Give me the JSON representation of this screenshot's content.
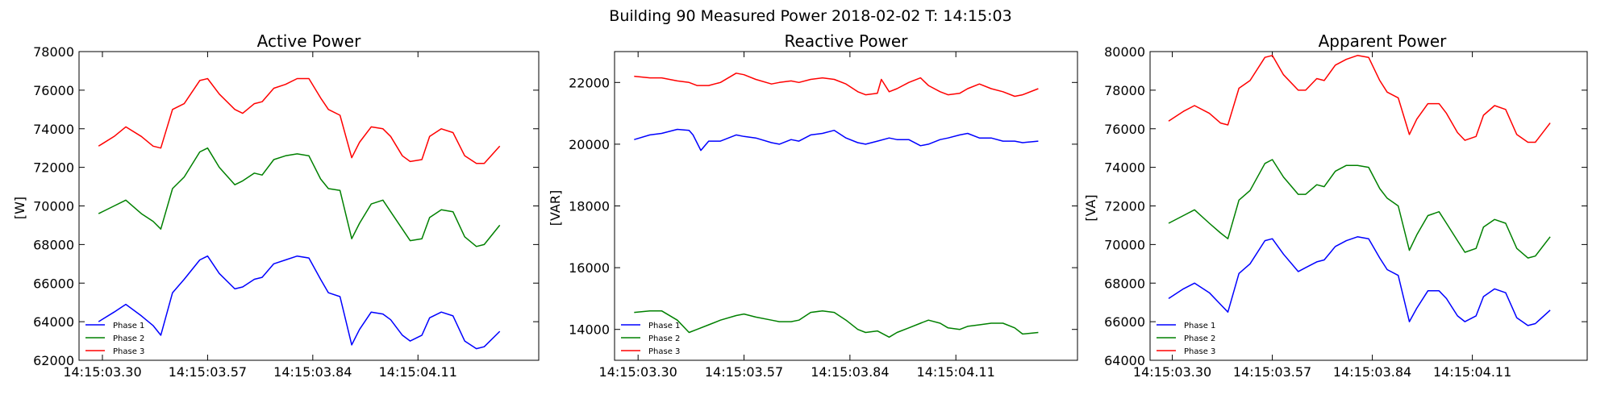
{
  "figure": {
    "suptitle": "Building 90 Measured Power 2018-02-02 T: 14:15:03"
  },
  "legend": [
    "Phase 1",
    "Phase 2",
    "Phase 3"
  ],
  "colors": {
    "phase1": "#0000ff",
    "phase2": "#008000",
    "phase3": "#ff0000",
    "axes": "#000000"
  },
  "chart_data": [
    {
      "type": "line",
      "title": "Active Power",
      "ylabel": "[W]",
      "xlabel": "",
      "x_ticks": [
        "14:15:03.30",
        "14:15:03.57",
        "14:15:03.84",
        "14:15:04.11"
      ],
      "x_range": [
        "14:15:03.24",
        "14:15:04.42"
      ],
      "x_tick_positions": [
        3.3,
        3.57,
        3.84,
        4.11
      ],
      "x_range_seconds": [
        3.24,
        4.42
      ],
      "ylim": [
        62000,
        78000
      ],
      "y_ticks": [
        62000,
        64000,
        66000,
        68000,
        70000,
        72000,
        74000,
        76000,
        78000
      ],
      "legend_position": "lower-left",
      "grid": false,
      "series": [
        {
          "name": "Phase 1",
          "color": "#0000ff",
          "x": [
            3.29,
            3.33,
            3.36,
            3.4,
            3.43,
            3.45,
            3.48,
            3.51,
            3.55,
            3.57,
            3.6,
            3.64,
            3.66,
            3.69,
            3.71,
            3.74,
            3.77,
            3.8,
            3.83,
            3.86,
            3.88,
            3.91,
            3.94,
            3.96,
            3.99,
            4.02,
            4.04,
            4.07,
            4.09,
            4.12,
            4.14,
            4.17,
            4.2,
            4.23,
            4.26,
            4.28,
            4.32
          ],
          "y": [
            64000,
            64500,
            64900,
            64300,
            63800,
            63300,
            65500,
            66200,
            67200,
            67400,
            66500,
            65700,
            65800,
            66200,
            66300,
            67000,
            67200,
            67400,
            67300,
            66200,
            65500,
            65300,
            62800,
            63600,
            64500,
            64400,
            64100,
            63300,
            63000,
            63300,
            64200,
            64500,
            64300,
            63000,
            62600,
            62700,
            63500
          ]
        },
        {
          "name": "Phase 2",
          "color": "#008000",
          "x": [
            3.29,
            3.33,
            3.36,
            3.4,
            3.43,
            3.45,
            3.48,
            3.51,
            3.55,
            3.57,
            3.6,
            3.64,
            3.66,
            3.69,
            3.71,
            3.74,
            3.77,
            3.8,
            3.83,
            3.86,
            3.88,
            3.91,
            3.94,
            3.96,
            3.99,
            4.02,
            4.04,
            4.07,
            4.09,
            4.12,
            4.14,
            4.17,
            4.2,
            4.23,
            4.26,
            4.28,
            4.32
          ],
          "y": [
            69600,
            70000,
            70300,
            69600,
            69200,
            68800,
            70900,
            71500,
            72800,
            73000,
            72000,
            71100,
            71300,
            71700,
            71600,
            72400,
            72600,
            72700,
            72600,
            71400,
            70900,
            70800,
            68300,
            69100,
            70100,
            70300,
            69700,
            68800,
            68200,
            68300,
            69400,
            69800,
            69700,
            68400,
            67900,
            68000,
            69000
          ]
        },
        {
          "name": "Phase 3",
          "color": "#ff0000",
          "x": [
            3.29,
            3.33,
            3.36,
            3.4,
            3.43,
            3.45,
            3.48,
            3.51,
            3.55,
            3.57,
            3.6,
            3.64,
            3.66,
            3.69,
            3.71,
            3.74,
            3.77,
            3.8,
            3.83,
            3.86,
            3.88,
            3.91,
            3.94,
            3.96,
            3.99,
            4.02,
            4.04,
            4.07,
            4.09,
            4.12,
            4.14,
            4.17,
            4.2,
            4.23,
            4.26,
            4.28,
            4.32
          ],
          "y": [
            73100,
            73600,
            74100,
            73600,
            73100,
            73000,
            75000,
            75300,
            76500,
            76600,
            75800,
            75000,
            74800,
            75300,
            75400,
            76100,
            76300,
            76600,
            76600,
            75600,
            75000,
            74700,
            72500,
            73300,
            74100,
            74000,
            73600,
            72600,
            72300,
            72400,
            73600,
            74000,
            73800,
            72600,
            72200,
            72200,
            73100
          ]
        }
      ]
    },
    {
      "type": "line",
      "title": "Reactive Power",
      "ylabel": "[VAR]",
      "xlabel": "",
      "x_ticks": [
        "14:15:03.30",
        "14:15:03.57",
        "14:15:03.84",
        "14:15:04.11"
      ],
      "x_range": [
        "14:15:03.24",
        "14:15:04.42"
      ],
      "x_tick_positions": [
        3.3,
        3.57,
        3.84,
        4.11
      ],
      "x_range_seconds": [
        3.24,
        4.42
      ],
      "ylim": [
        13000,
        23000
      ],
      "y_ticks": [
        14000,
        16000,
        18000,
        20000,
        22000
      ],
      "legend_position": "lower-left",
      "grid": false,
      "series": [
        {
          "name": "Phase 1",
          "color": "#0000ff",
          "x": [
            3.29,
            3.33,
            3.36,
            3.4,
            3.43,
            3.44,
            3.46,
            3.48,
            3.51,
            3.55,
            3.57,
            3.6,
            3.64,
            3.66,
            3.69,
            3.71,
            3.74,
            3.77,
            3.8,
            3.83,
            3.86,
            3.88,
            3.91,
            3.94,
            3.96,
            3.99,
            4.02,
            4.04,
            4.07,
            4.09,
            4.12,
            4.14,
            4.17,
            4.2,
            4.23,
            4.26,
            4.28,
            4.32
          ],
          "y": [
            20150,
            20300,
            20350,
            20480,
            20450,
            20300,
            19800,
            20100,
            20100,
            20300,
            20250,
            20200,
            20050,
            20000,
            20150,
            20100,
            20300,
            20350,
            20450,
            20200,
            20050,
            20000,
            20100,
            20200,
            20150,
            20150,
            19950,
            20000,
            20150,
            20200,
            20300,
            20350,
            20200,
            20200,
            20100,
            20100,
            20050,
            20100
          ]
        },
        {
          "name": "Phase 2",
          "color": "#008000",
          "x": [
            3.29,
            3.33,
            3.36,
            3.4,
            3.43,
            3.45,
            3.48,
            3.51,
            3.55,
            3.57,
            3.6,
            3.64,
            3.66,
            3.69,
            3.71,
            3.74,
            3.77,
            3.8,
            3.83,
            3.86,
            3.88,
            3.91,
            3.94,
            3.96,
            3.99,
            4.02,
            4.04,
            4.07,
            4.09,
            4.12,
            4.14,
            4.17,
            4.2,
            4.23,
            4.26,
            4.28,
            4.32
          ],
          "y": [
            14550,
            14600,
            14600,
            14300,
            13900,
            14000,
            14150,
            14300,
            14450,
            14500,
            14400,
            14300,
            14250,
            14250,
            14300,
            14550,
            14600,
            14550,
            14300,
            14000,
            13900,
            13950,
            13750,
            13900,
            14050,
            14200,
            14300,
            14200,
            14050,
            14000,
            14100,
            14150,
            14200,
            14200,
            14050,
            13850,
            13900
          ]
        },
        {
          "name": "Phase 3",
          "color": "#ff0000",
          "x": [
            3.29,
            3.33,
            3.36,
            3.4,
            3.43,
            3.45,
            3.48,
            3.51,
            3.55,
            3.57,
            3.6,
            3.64,
            3.66,
            3.69,
            3.71,
            3.74,
            3.77,
            3.8,
            3.83,
            3.86,
            3.88,
            3.91,
            3.92,
            3.94,
            3.96,
            3.99,
            4.02,
            4.04,
            4.07,
            4.09,
            4.12,
            4.14,
            4.17,
            4.2,
            4.23,
            4.26,
            4.28,
            4.32
          ],
          "y": [
            22200,
            22150,
            22150,
            22050,
            22000,
            21900,
            21900,
            22000,
            22300,
            22250,
            22100,
            21950,
            22000,
            22050,
            22000,
            22100,
            22150,
            22100,
            21950,
            21700,
            21600,
            21650,
            22100,
            21700,
            21800,
            22000,
            22150,
            21900,
            21700,
            21600,
            21650,
            21800,
            21950,
            21800,
            21700,
            21550,
            21600,
            21800
          ]
        }
      ]
    },
    {
      "type": "line",
      "title": "Apparent Power",
      "ylabel": "[VA]",
      "xlabel": "",
      "x_ticks": [
        "14:15:03.30",
        "14:15:03.57",
        "14:15:03.84",
        "14:15:04.11"
      ],
      "x_range": [
        "14:15:03.24",
        "14:15:04.42"
      ],
      "x_tick_positions": [
        3.3,
        3.57,
        3.84,
        4.11
      ],
      "x_range_seconds": [
        3.24,
        4.42
      ],
      "ylim": [
        64000,
        80000
      ],
      "y_ticks": [
        64000,
        66000,
        68000,
        70000,
        72000,
        74000,
        76000,
        78000,
        80000
      ],
      "legend_position": "lower-left",
      "grid": false,
      "series": [
        {
          "name": "Phase 1",
          "color": "#0000ff",
          "x": [
            3.29,
            3.33,
            3.36,
            3.4,
            3.43,
            3.45,
            3.48,
            3.51,
            3.55,
            3.57,
            3.6,
            3.64,
            3.66,
            3.69,
            3.71,
            3.74,
            3.77,
            3.8,
            3.83,
            3.86,
            3.88,
            3.91,
            3.94,
            3.96,
            3.99,
            4.02,
            4.04,
            4.07,
            4.09,
            4.12,
            4.14,
            4.17,
            4.2,
            4.23,
            4.26,
            4.28,
            4.32
          ],
          "y": [
            67200,
            67700,
            68000,
            67500,
            66900,
            66500,
            68500,
            69000,
            70200,
            70300,
            69500,
            68600,
            68800,
            69100,
            69200,
            69900,
            70200,
            70400,
            70300,
            69300,
            68700,
            68400,
            66000,
            66700,
            67600,
            67600,
            67200,
            66300,
            66000,
            66300,
            67300,
            67700,
            67500,
            66200,
            65800,
            65900,
            66600
          ]
        },
        {
          "name": "Phase 2",
          "color": "#008000",
          "x": [
            3.29,
            3.33,
            3.36,
            3.4,
            3.43,
            3.45,
            3.48,
            3.51,
            3.55,
            3.57,
            3.6,
            3.64,
            3.66,
            3.69,
            3.71,
            3.74,
            3.77,
            3.8,
            3.83,
            3.86,
            3.88,
            3.91,
            3.94,
            3.96,
            3.99,
            4.02,
            4.04,
            4.07,
            4.09,
            4.12,
            4.14,
            4.17,
            4.2,
            4.23,
            4.26,
            4.28,
            4.32
          ],
          "y": [
            71100,
            71500,
            71800,
            71100,
            70600,
            70300,
            72300,
            72800,
            74200,
            74400,
            73500,
            72600,
            72600,
            73100,
            73000,
            73800,
            74100,
            74100,
            74000,
            72900,
            72400,
            72000,
            69700,
            70500,
            71500,
            71700,
            71100,
            70200,
            69600,
            69800,
            70900,
            71300,
            71100,
            69800,
            69300,
            69400,
            70400
          ]
        },
        {
          "name": "Phase 3",
          "color": "#ff0000",
          "x": [
            3.29,
            3.33,
            3.36,
            3.4,
            3.43,
            3.45,
            3.48,
            3.51,
            3.55,
            3.57,
            3.6,
            3.64,
            3.66,
            3.69,
            3.71,
            3.74,
            3.77,
            3.8,
            3.83,
            3.86,
            3.88,
            3.91,
            3.94,
            3.96,
            3.99,
            4.02,
            4.04,
            4.07,
            4.09,
            4.12,
            4.14,
            4.17,
            4.2,
            4.23,
            4.26,
            4.28,
            4.32
          ],
          "y": [
            76400,
            76900,
            77200,
            76800,
            76300,
            76200,
            78100,
            78500,
            79700,
            79800,
            78800,
            78000,
            78000,
            78600,
            78500,
            79300,
            79600,
            79800,
            79700,
            78500,
            77900,
            77600,
            75700,
            76500,
            77300,
            77300,
            76800,
            75800,
            75400,
            75600,
            76700,
            77200,
            77000,
            75700,
            75300,
            75300,
            76300
          ]
        }
      ]
    }
  ]
}
